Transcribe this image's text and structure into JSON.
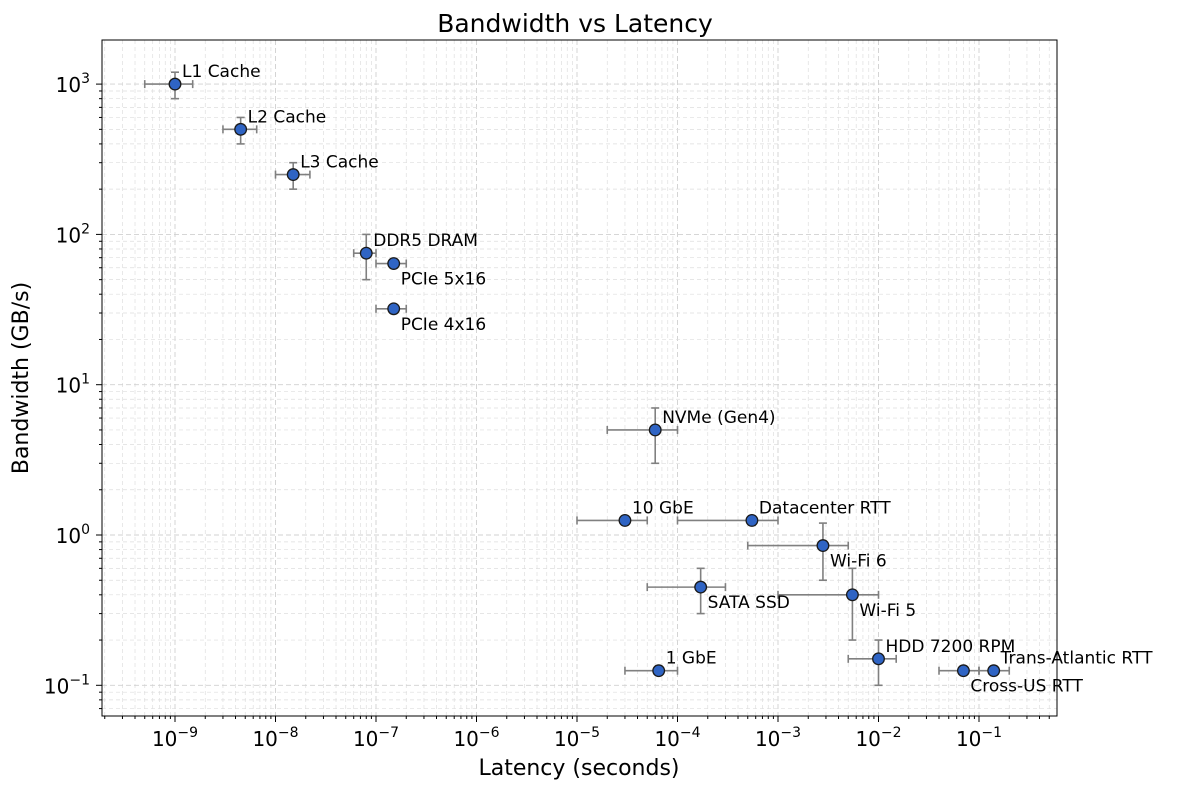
{
  "chart_data": {
    "type": "scatter",
    "title": "Bandwidth vs Latency",
    "xlabel": "Latency (seconds)",
    "ylabel": "Bandwidth (GB/s)",
    "xscale": "log",
    "yscale": "log",
    "xlim": [
      2e-10,
      0.5
    ],
    "ylim": [
      0.065,
      2000
    ],
    "grid": true,
    "legend": "none",
    "point_color": "#2f64c4",
    "errorbar_color": "#808080",
    "x_ticks": [
      {
        "value": 1e-09,
        "label": "10",
        "exp": "−9"
      },
      {
        "value": 1e-08,
        "label": "10",
        "exp": "−8"
      },
      {
        "value": 1e-07,
        "label": "10",
        "exp": "−7"
      },
      {
        "value": 1e-06,
        "label": "10",
        "exp": "−6"
      },
      {
        "value": 1e-05,
        "label": "10",
        "exp": "−5"
      },
      {
        "value": 0.0001,
        "label": "10",
        "exp": "−4"
      },
      {
        "value": 0.001,
        "label": "10",
        "exp": "−3"
      },
      {
        "value": 0.01,
        "label": "10",
        "exp": "−2"
      },
      {
        "value": 0.1,
        "label": "10",
        "exp": "−1"
      }
    ],
    "y_ticks": [
      {
        "value": 0.1,
        "label": "10",
        "exp": "−1"
      },
      {
        "value": 1,
        "label": "10",
        "exp": "0"
      },
      {
        "value": 10,
        "label": "10",
        "exp": "1"
      },
      {
        "value": 100,
        "label": "10",
        "exp": "2"
      },
      {
        "value": 1000,
        "label": "10",
        "exp": "3"
      }
    ],
    "points": [
      {
        "name": "L1 Cache",
        "x": 1e-09,
        "y": 1000,
        "xerr": [
          5e-10,
          1.5e-09
        ],
        "yerr": [
          800,
          1200
        ],
        "label_pos": "above"
      },
      {
        "name": "L2 Cache",
        "x": 4.5e-09,
        "y": 500,
        "xerr": [
          3e-09,
          6.5e-09
        ],
        "yerr": [
          400,
          600
        ],
        "label_pos": "above"
      },
      {
        "name": "L3 Cache",
        "x": 1.5e-08,
        "y": 250,
        "xerr": [
          1e-08,
          2.2e-08
        ],
        "yerr": [
          200,
          300
        ],
        "label_pos": "above"
      },
      {
        "name": "DDR5 DRAM",
        "x": 8e-08,
        "y": 75,
        "xerr": [
          6e-08,
          1e-07
        ],
        "yerr": [
          50,
          100
        ],
        "label_pos": "above"
      },
      {
        "name": "PCIe 5x16",
        "x": 1.5e-07,
        "y": 64,
        "xerr": [
          1e-07,
          2e-07
        ],
        "yerr": [
          64,
          64
        ],
        "label_pos": "below"
      },
      {
        "name": "PCIe 4x16",
        "x": 1.5e-07,
        "y": 32,
        "xerr": [
          1e-07,
          2e-07
        ],
        "yerr": [
          32,
          32
        ],
        "label_pos": "below"
      },
      {
        "name": "NVMe (Gen4)",
        "x": 6e-05,
        "y": 5,
        "xerr": [
          2e-05,
          0.0001
        ],
        "yerr": [
          3,
          7
        ],
        "label_pos": "above"
      },
      {
        "name": "10 GbE",
        "x": 3e-05,
        "y": 1.25,
        "xerr": [
          1e-05,
          5e-05
        ],
        "yerr": [
          1.25,
          1.25
        ],
        "label_pos": "above"
      },
      {
        "name": "Datacenter RTT",
        "x": 0.00055,
        "y": 1.25,
        "xerr": [
          0.0001,
          0.001
        ],
        "yerr": [
          1.25,
          1.25
        ],
        "label_pos": "above"
      },
      {
        "name": "Wi-Fi 6",
        "x": 0.0028,
        "y": 0.85,
        "xerr": [
          0.0005,
          0.005
        ],
        "yerr": [
          0.5,
          1.2
        ],
        "label_pos": "below"
      },
      {
        "name": "SATA SSD",
        "x": 0.00017,
        "y": 0.45,
        "xerr": [
          5e-05,
          0.0003
        ],
        "yerr": [
          0.3,
          0.6
        ],
        "label_pos": "below"
      },
      {
        "name": "Wi-Fi 5",
        "x": 0.0055,
        "y": 0.4,
        "xerr": [
          0.001,
          0.01
        ],
        "yerr": [
          0.2,
          0.6
        ],
        "label_pos": "below"
      },
      {
        "name": "HDD 7200 RPM",
        "x": 0.01,
        "y": 0.15,
        "xerr": [
          0.005,
          0.015
        ],
        "yerr": [
          0.1,
          0.2
        ],
        "label_pos": "above"
      },
      {
        "name": "1 GbE",
        "x": 6.5e-05,
        "y": 0.125,
        "xerr": [
          3e-05,
          0.0001
        ],
        "yerr": [
          0.125,
          0.125
        ],
        "label_pos": "above"
      },
      {
        "name": "Cross-US RTT",
        "x": 0.07,
        "y": 0.125,
        "xerr": [
          0.04,
          0.1
        ],
        "yerr": [
          0.125,
          0.125
        ],
        "label_pos": "below"
      },
      {
        "name": "Trans-Atlantic RTT",
        "x": 0.14,
        "y": 0.125,
        "xerr": [
          0.1,
          0.2
        ],
        "yerr": [
          0.125,
          0.125
        ],
        "label_pos": "above"
      }
    ]
  }
}
